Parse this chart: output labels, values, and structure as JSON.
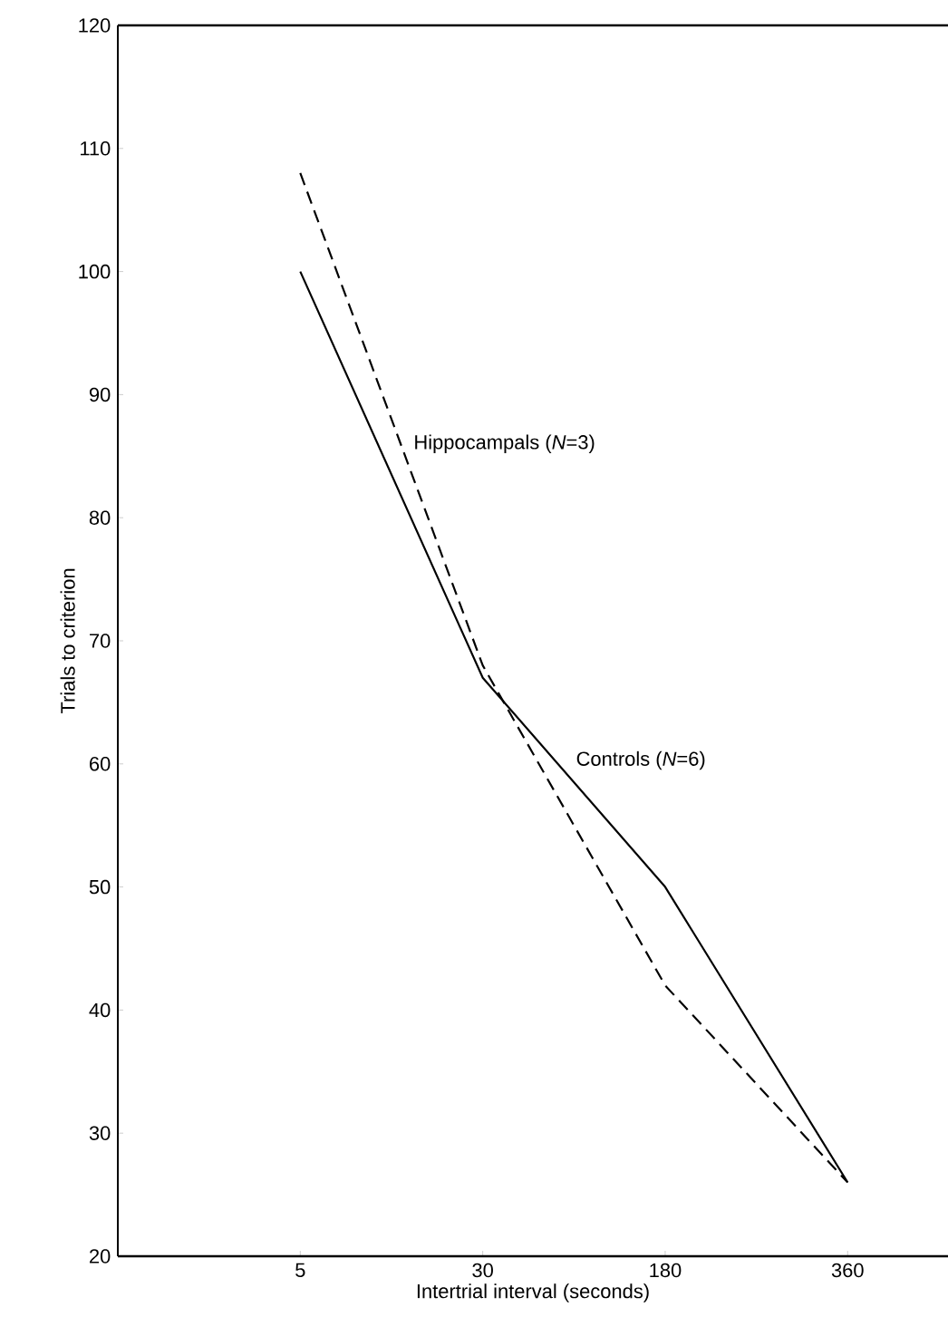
{
  "chart_data": {
    "type": "line",
    "xlabel": "Intertrial interval (seconds)",
    "ylabel": "Trials to criterion",
    "categories": [
      "5",
      "30",
      "180",
      "360"
    ],
    "series": [
      {
        "name": "Hippocampals (*N*=3)",
        "color": "#000000",
        "line_style": "dashed",
        "values": [
          108,
          68,
          42,
          26
        ]
      },
      {
        "name": "Controls (*N*=6)",
        "color": "#000000",
        "line_style": "solid",
        "values": [
          100,
          67,
          50,
          26
        ]
      }
    ],
    "ylim": [
      20,
      120
    ],
    "yticks": [
      20,
      30,
      40,
      50,
      60,
      70,
      80,
      90,
      100,
      110,
      120
    ],
    "grid": false,
    "legend": false,
    "marker": "none"
  }
}
